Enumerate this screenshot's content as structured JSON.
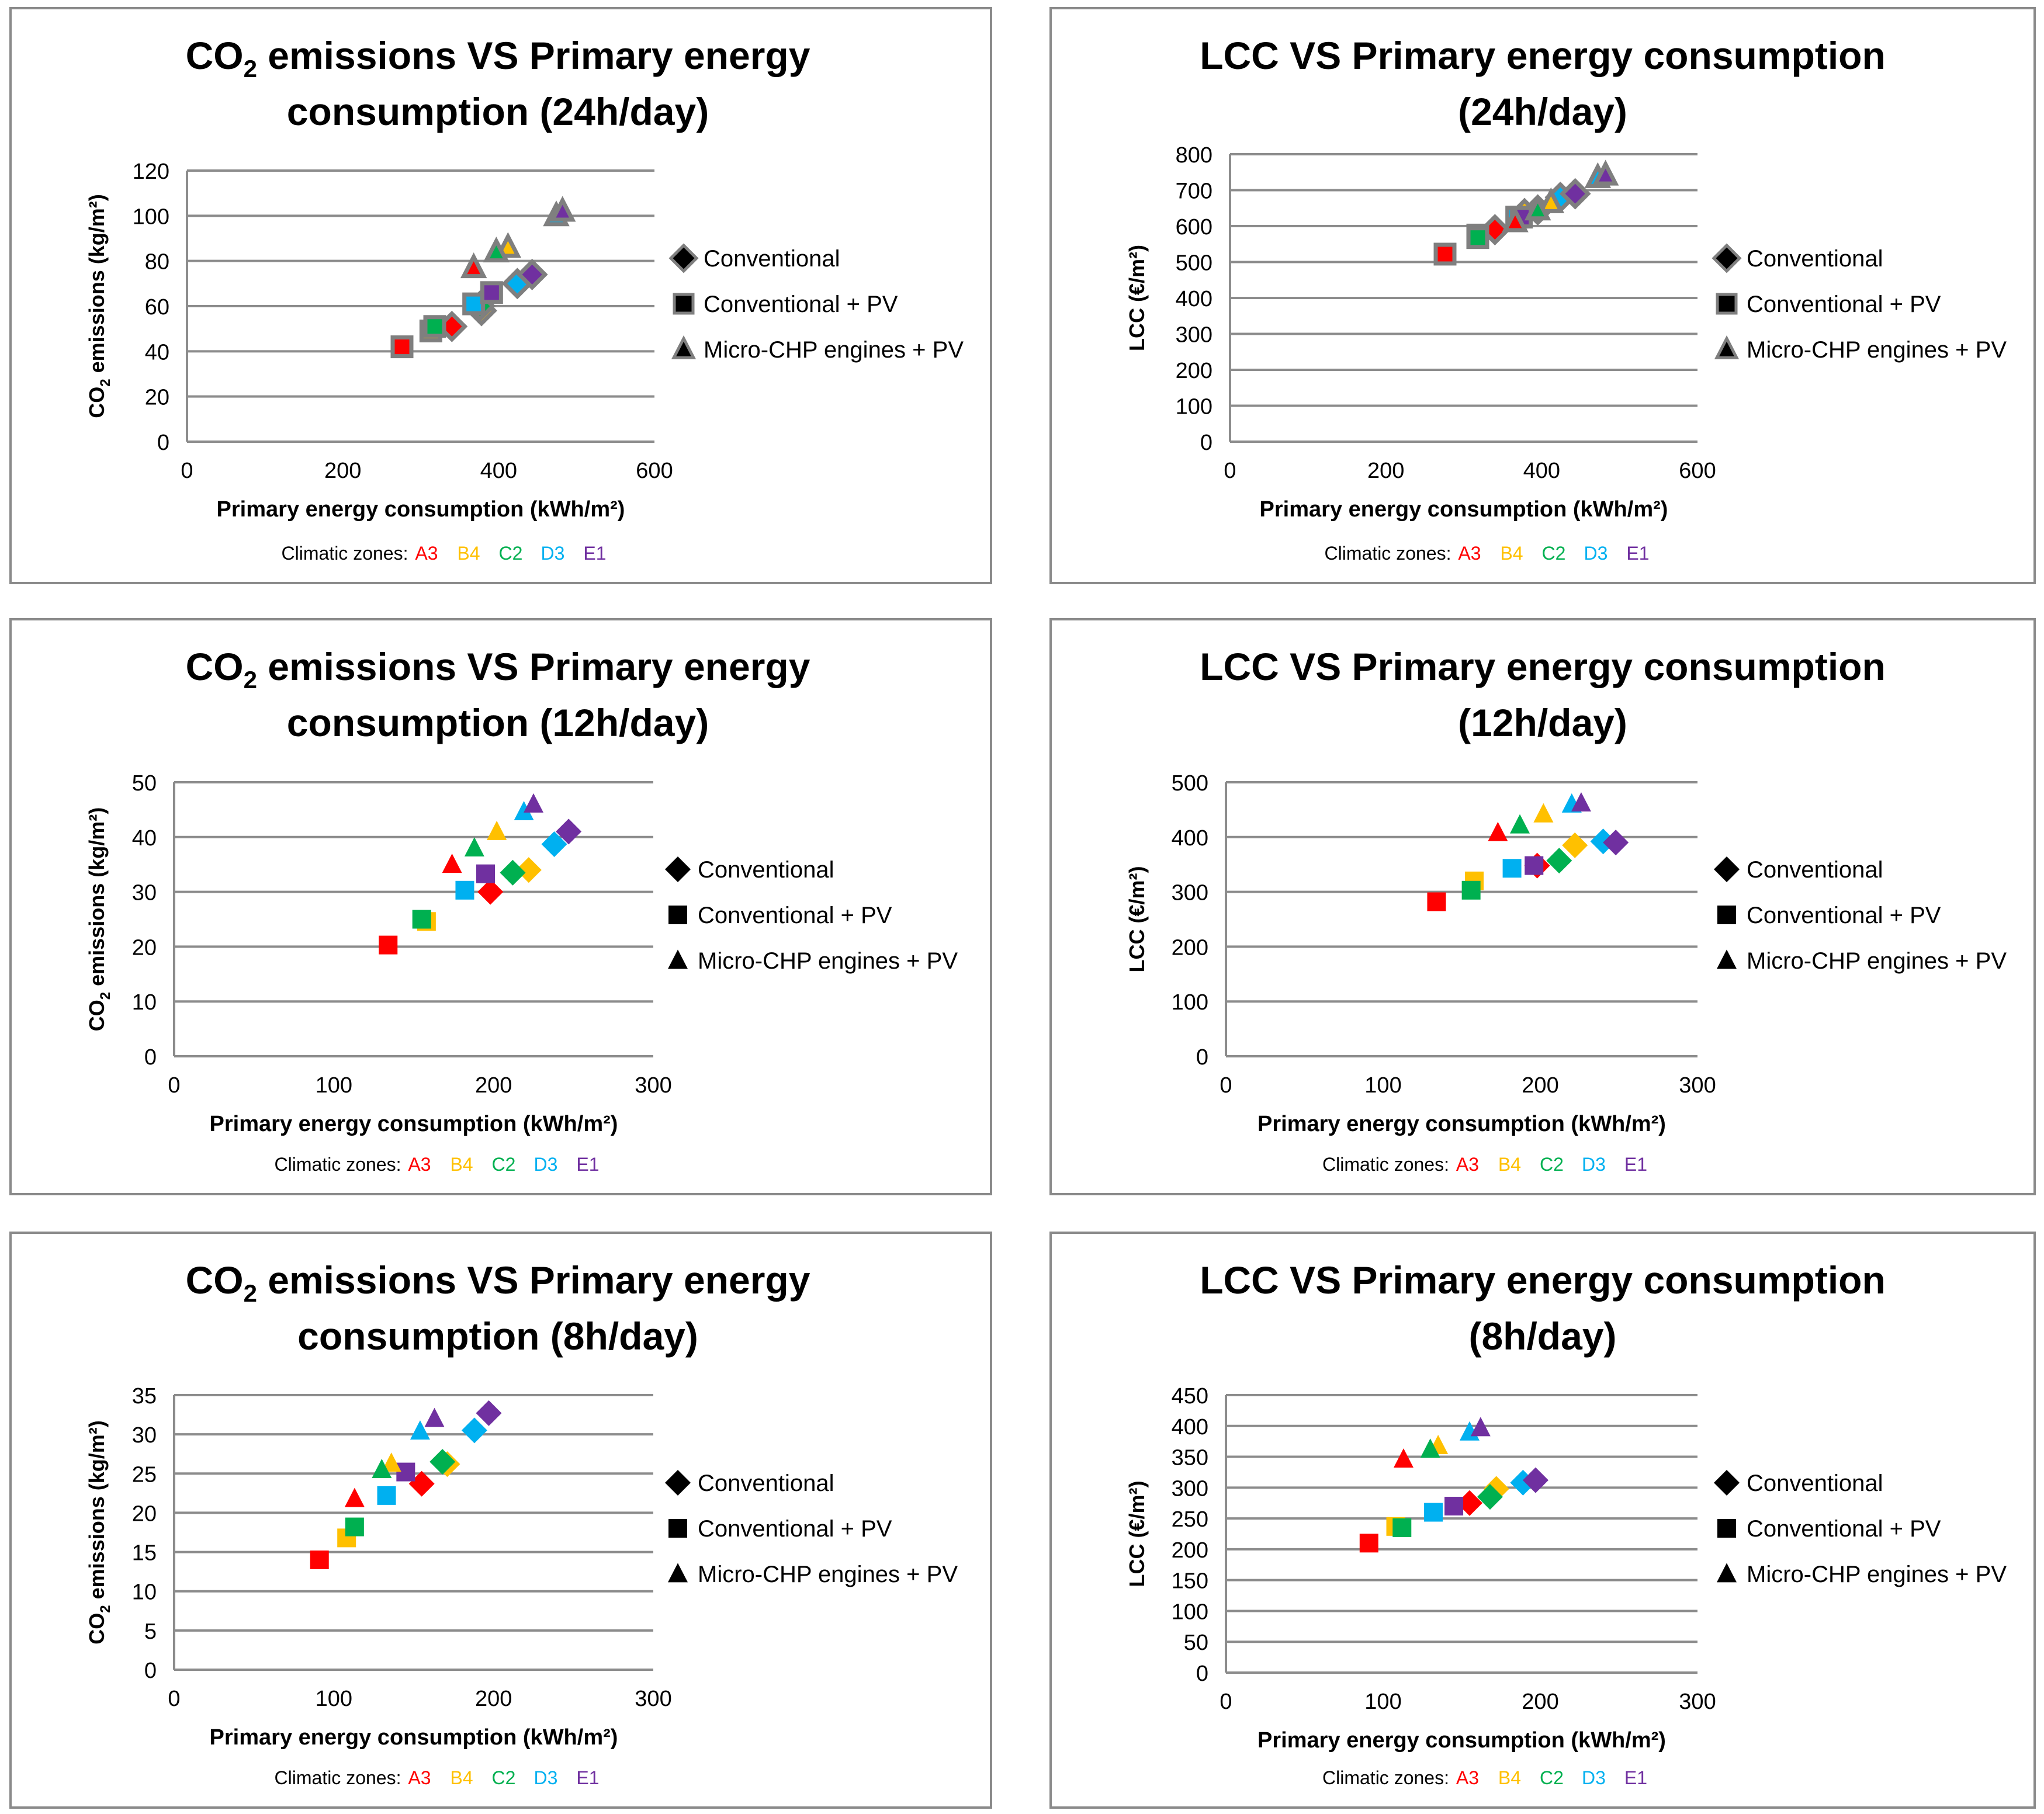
{
  "zone_colors": {
    "A3": "#ff0000",
    "B4": "#ffc000",
    "C2": "#00b050",
    "D3": "#00b0f0",
    "E1": "#7030a0"
  },
  "legend": {
    "series": [
      "Conventional",
      "Conventional + PV",
      "Micro-CHP engines + PV"
    ],
    "zones_label": "Climatic zones:",
    "zones": [
      "A3",
      "B4",
      "C2",
      "D3",
      "E1"
    ]
  },
  "chart_data": [
    {
      "id": "co2-24h",
      "type": "scatter",
      "title": {
        "line1_a": "CO",
        "line1_sub": "2",
        "line1_b": " emissions VS Primary energy",
        "line2": "consumption (24h/day)"
      },
      "xlabel": "Primary energy consumption  (kWh/m²)",
      "ylabel": {
        "a": "CO",
        "sub": "2",
        "b": " emissions (kg/m²)"
      },
      "xlim": [
        0,
        600
      ],
      "xticks": [
        0,
        200,
        400,
        600
      ],
      "ylim": [
        0,
        120
      ],
      "yticks": [
        0,
        20,
        40,
        60,
        80,
        100,
        120
      ],
      "marker_style": "outlined",
      "series": [
        {
          "name": "Conventional",
          "marker": "diamond",
          "points": [
            {
              "zone": "A3",
              "x": 340,
              "y": 51
            },
            {
              "zone": "B4",
              "x": 378,
              "y": 58
            },
            {
              "zone": "C2",
              "x": 376,
              "y": 60
            },
            {
              "zone": "D3",
              "x": 424,
              "y": 70
            },
            {
              "zone": "E1",
              "x": 443,
              "y": 74
            }
          ]
        },
        {
          "name": "Conventional + PV",
          "marker": "square",
          "points": [
            {
              "zone": "A3",
              "x": 276,
              "y": 42
            },
            {
              "zone": "B4",
              "x": 313,
              "y": 49
            },
            {
              "zone": "C2",
              "x": 318,
              "y": 51
            },
            {
              "zone": "D3",
              "x": 368,
              "y": 61
            },
            {
              "zone": "E1",
              "x": 391,
              "y": 66
            }
          ]
        },
        {
          "name": "Micro-CHP engines + PV",
          "marker": "triangle",
          "points": [
            {
              "zone": "A3",
              "x": 368,
              "y": 77
            },
            {
              "zone": "B4",
              "x": 412,
              "y": 86
            },
            {
              "zone": "C2",
              "x": 397,
              "y": 84
            },
            {
              "zone": "D3",
              "x": 474,
              "y": 100
            },
            {
              "zone": "E1",
              "x": 482,
              "y": 102
            }
          ]
        }
      ]
    },
    {
      "id": "lcc-24h",
      "type": "scatter",
      "title": {
        "line1_a": "LCC VS Primary energy consumption",
        "line1_sub": "",
        "line1_b": "",
        "line2": "(24h/day)"
      },
      "xlabel": "Primary energy consumption  (kWh/m²)",
      "ylabel": {
        "a": "LCC (€/m²)",
        "sub": "",
        "b": ""
      },
      "xlim": [
        0,
        600
      ],
      "xticks": [
        0,
        200,
        400,
        600
      ],
      "ylim": [
        0,
        800
      ],
      "yticks": [
        0,
        100,
        200,
        300,
        400,
        500,
        600,
        700,
        800
      ],
      "marker_style": "outlined",
      "series": [
        {
          "name": "Conventional",
          "marker": "diamond",
          "points": [
            {
              "zone": "A3",
              "x": 340,
              "y": 590
            },
            {
              "zone": "B4",
              "x": 378,
              "y": 635
            },
            {
              "zone": "C2",
              "x": 395,
              "y": 645
            },
            {
              "zone": "D3",
              "x": 424,
              "y": 680
            },
            {
              "zone": "E1",
              "x": 443,
              "y": 690
            }
          ]
        },
        {
          "name": "Conventional + PV",
          "marker": "square",
          "points": [
            {
              "zone": "A3",
              "x": 276,
              "y": 522
            },
            {
              "zone": "B4",
              "x": 318,
              "y": 575
            },
            {
              "zone": "C2",
              "x": 318,
              "y": 568
            },
            {
              "zone": "D3",
              "x": 368,
              "y": 625
            },
            {
              "zone": "E1",
              "x": 374,
              "y": 625
            }
          ]
        },
        {
          "name": "Micro-CHP engines + PV",
          "marker": "triangle",
          "points": [
            {
              "zone": "A3",
              "x": 366,
              "y": 612
            },
            {
              "zone": "B4",
              "x": 412,
              "y": 665
            },
            {
              "zone": "C2",
              "x": 395,
              "y": 645
            },
            {
              "zone": "D3",
              "x": 472,
              "y": 735
            },
            {
              "zone": "E1",
              "x": 482,
              "y": 742
            }
          ]
        }
      ]
    },
    {
      "id": "co2-12h",
      "type": "scatter",
      "title": {
        "line1_a": "CO",
        "line1_sub": "2",
        "line1_b": " emissions VS Primary energy",
        "line2": "consumption (12h/day)"
      },
      "xlabel": "Primary energy consumption  (kWh/m²)",
      "ylabel": {
        "a": "CO",
        "sub": "2",
        "b": " emissions (kg/m²)"
      },
      "xlim": [
        0,
        300
      ],
      "xticks": [
        0,
        100,
        200,
        300
      ],
      "ylim": [
        0,
        50
      ],
      "yticks": [
        0,
        10,
        20,
        30,
        40,
        50
      ],
      "marker_style": "solid",
      "series": [
        {
          "name": "Conventional",
          "marker": "diamond",
          "points": [
            {
              "zone": "A3",
              "x": 198,
              "y": 30
            },
            {
              "zone": "B4",
              "x": 222,
              "y": 34
            },
            {
              "zone": "C2",
              "x": 212,
              "y": 33.5
            },
            {
              "zone": "D3",
              "x": 238,
              "y": 38.7
            },
            {
              "zone": "E1",
              "x": 247,
              "y": 41
            }
          ]
        },
        {
          "name": "Conventional + PV",
          "marker": "square",
          "points": [
            {
              "zone": "A3",
              "x": 134,
              "y": 20.3
            },
            {
              "zone": "B4",
              "x": 158,
              "y": 24.6
            },
            {
              "zone": "C2",
              "x": 155,
              "y": 25
            },
            {
              "zone": "D3",
              "x": 182,
              "y": 30.3
            },
            {
              "zone": "E1",
              "x": 195,
              "y": 33.3
            }
          ]
        },
        {
          "name": "Micro-CHP engines + PV",
          "marker": "triangle",
          "points": [
            {
              "zone": "A3",
              "x": 174,
              "y": 35
            },
            {
              "zone": "B4",
              "x": 202,
              "y": 41
            },
            {
              "zone": "C2",
              "x": 188,
              "y": 38
            },
            {
              "zone": "D3",
              "x": 219,
              "y": 44.6
            },
            {
              "zone": "E1",
              "x": 225,
              "y": 46
            }
          ]
        }
      ]
    },
    {
      "id": "lcc-12h",
      "type": "scatter",
      "title": {
        "line1_a": "LCC VS Primary energy consumption",
        "line1_sub": "",
        "line1_b": "",
        "line2": "(12h/day)"
      },
      "xlabel": "Primary energy consumption  (kWh/m²)",
      "ylabel": {
        "a": "LCC (€/m²)",
        "sub": "",
        "b": ""
      },
      "xlim": [
        0,
        300
      ],
      "xticks": [
        0,
        100,
        200,
        300
      ],
      "ylim": [
        0,
        500
      ],
      "yticks": [
        0,
        100,
        200,
        300,
        400,
        500
      ],
      "marker_style": "solid",
      "series": [
        {
          "name": "Conventional",
          "marker": "diamond",
          "points": [
            {
              "zone": "A3",
              "x": 198,
              "y": 348
            },
            {
              "zone": "B4",
              "x": 222,
              "y": 385
            },
            {
              "zone": "C2",
              "x": 212,
              "y": 357
            },
            {
              "zone": "D3",
              "x": 240,
              "y": 392
            },
            {
              "zone": "E1",
              "x": 248,
              "y": 390
            }
          ]
        },
        {
          "name": "Conventional + PV",
          "marker": "square",
          "points": [
            {
              "zone": "A3",
              "x": 134,
              "y": 282
            },
            {
              "zone": "B4",
              "x": 158,
              "y": 320
            },
            {
              "zone": "C2",
              "x": 156,
              "y": 303
            },
            {
              "zone": "D3",
              "x": 182,
              "y": 343
            },
            {
              "zone": "E1",
              "x": 196,
              "y": 348
            }
          ]
        },
        {
          "name": "Micro-CHP engines + PV",
          "marker": "triangle",
          "points": [
            {
              "zone": "A3",
              "x": 173,
              "y": 408
            },
            {
              "zone": "B4",
              "x": 202,
              "y": 442
            },
            {
              "zone": "C2",
              "x": 187,
              "y": 422
            },
            {
              "zone": "D3",
              "x": 220,
              "y": 460
            },
            {
              "zone": "E1",
              "x": 226,
              "y": 462
            }
          ]
        }
      ]
    },
    {
      "id": "co2-8h",
      "type": "scatter",
      "title": {
        "line1_a": "CO",
        "line1_sub": "2",
        "line1_b": " emissions VS Primary energy",
        "line2": "consumption (8h/day)"
      },
      "xlabel": "Primary energy consumption  (kWh/m²)",
      "ylabel": {
        "a": "CO",
        "sub": "2",
        "b": " emissions (kg/m²)"
      },
      "xlim": [
        0,
        300
      ],
      "xticks": [
        0,
        100,
        200,
        300
      ],
      "ylim": [
        0,
        35
      ],
      "yticks": [
        0,
        5,
        10,
        15,
        20,
        25,
        30,
        35
      ],
      "marker_style": "solid",
      "series": [
        {
          "name": "Conventional",
          "marker": "diamond",
          "points": [
            {
              "zone": "A3",
              "x": 155,
              "y": 23.7
            },
            {
              "zone": "B4",
              "x": 171,
              "y": 26.2
            },
            {
              "zone": "C2",
              "x": 168,
              "y": 26.5
            },
            {
              "zone": "D3",
              "x": 188,
              "y": 30.5
            },
            {
              "zone": "E1",
              "x": 197,
              "y": 32.7
            }
          ]
        },
        {
          "name": "Conventional + PV",
          "marker": "square",
          "points": [
            {
              "zone": "A3",
              "x": 91,
              "y": 14
            },
            {
              "zone": "B4",
              "x": 108,
              "y": 16.8
            },
            {
              "zone": "C2",
              "x": 113,
              "y": 18.2
            },
            {
              "zone": "D3",
              "x": 133,
              "y": 22.2
            },
            {
              "zone": "E1",
              "x": 145,
              "y": 25.2
            }
          ]
        },
        {
          "name": "Micro-CHP engines + PV",
          "marker": "triangle",
          "points": [
            {
              "zone": "A3",
              "x": 113,
              "y": 21.8
            },
            {
              "zone": "B4",
              "x": 136,
              "y": 26.3
            },
            {
              "zone": "C2",
              "x": 130,
              "y": 25.5
            },
            {
              "zone": "D3",
              "x": 154,
              "y": 30.4
            },
            {
              "zone": "E1",
              "x": 163,
              "y": 32
            }
          ]
        }
      ]
    },
    {
      "id": "lcc-8h",
      "type": "scatter",
      "title": {
        "line1_a": "LCC VS Primary energy consumption",
        "line1_sub": "",
        "line1_b": "",
        "line2": "(8h/day)"
      },
      "xlabel": "Primary energy consumption  (kWh/m²)",
      "ylabel": {
        "a": "LCC (€/m²)",
        "sub": "",
        "b": ""
      },
      "xlim": [
        0,
        300
      ],
      "xticks": [
        0,
        100,
        200,
        300
      ],
      "ylim": [
        0,
        450
      ],
      "yticks": [
        0,
        50,
        100,
        150,
        200,
        250,
        300,
        350,
        400,
        450
      ],
      "marker_style": "solid",
      "series": [
        {
          "name": "Conventional",
          "marker": "diamond",
          "points": [
            {
              "zone": "A3",
              "x": 155,
              "y": 275
            },
            {
              "zone": "B4",
              "x": 172,
              "y": 298
            },
            {
              "zone": "C2",
              "x": 168,
              "y": 285
            },
            {
              "zone": "D3",
              "x": 189,
              "y": 308
            },
            {
              "zone": "E1",
              "x": 197,
              "y": 312
            }
          ]
        },
        {
          "name": "Conventional + PV",
          "marker": "square",
          "points": [
            {
              "zone": "A3",
              "x": 91,
              "y": 210
            },
            {
              "zone": "B4",
              "x": 108,
              "y": 237
            },
            {
              "zone": "C2",
              "x": 112,
              "y": 235
            },
            {
              "zone": "D3",
              "x": 132,
              "y": 260
            },
            {
              "zone": "E1",
              "x": 145,
              "y": 270
            }
          ]
        },
        {
          "name": "Micro-CHP engines + PV",
          "marker": "triangle",
          "points": [
            {
              "zone": "A3",
              "x": 113,
              "y": 346
            },
            {
              "zone": "B4",
              "x": 135,
              "y": 368
            },
            {
              "zone": "C2",
              "x": 130,
              "y": 362
            },
            {
              "zone": "D3",
              "x": 155,
              "y": 390
            },
            {
              "zone": "E1",
              "x": 162,
              "y": 397
            }
          ]
        }
      ]
    }
  ]
}
